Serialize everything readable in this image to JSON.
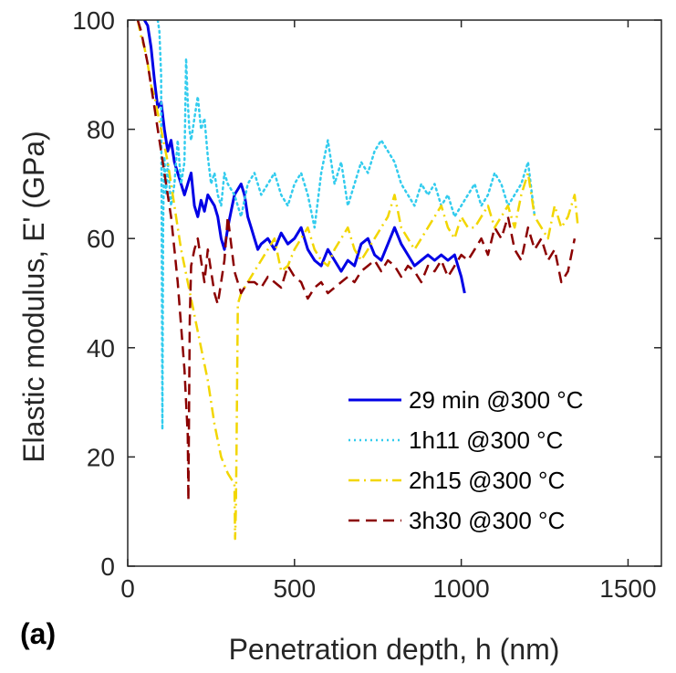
{
  "chart_data": {
    "type": "line",
    "panel_label": "(a)",
    "title": "",
    "xlabel": "Penetration depth, h (nm)",
    "ylabel": "Elastic modulus, E' (GPa)",
    "xlim": [
      0,
      1600
    ],
    "ylim": [
      0,
      100
    ],
    "xticks": [
      "0",
      "500",
      "1000",
      "1500"
    ],
    "yticks": [
      "0",
      "20",
      "40",
      "60",
      "80",
      "100"
    ],
    "legend_position": "bottom-right",
    "series": [
      {
        "name": "29 min @300 °C",
        "color": "#0000e6",
        "style": "solid",
        "x": [
          50,
          60,
          70,
          80,
          90,
          100,
          110,
          120,
          130,
          140,
          150,
          160,
          170,
          180,
          190,
          200,
          210,
          220,
          230,
          240,
          250,
          260,
          270,
          280,
          290,
          300,
          310,
          320,
          330,
          340,
          350,
          360,
          370,
          380,
          390,
          400,
          420,
          440,
          460,
          480,
          500,
          520,
          540,
          560,
          580,
          600,
          620,
          640,
          660,
          680,
          700,
          720,
          740,
          760,
          780,
          800,
          820,
          840,
          860,
          880,
          900,
          920,
          940,
          960,
          980,
          1000,
          1010
        ],
        "y": [
          100,
          99,
          95,
          89,
          84,
          85,
          80,
          76,
          78,
          74,
          72,
          70,
          68,
          70,
          72,
          66,
          64,
          67,
          65,
          68,
          67,
          66,
          64,
          60,
          58,
          62,
          65,
          68,
          69,
          70,
          68,
          64,
          62,
          60,
          58,
          59,
          60,
          58,
          61,
          59,
          60,
          62,
          58,
          56,
          55,
          58,
          56,
          54,
          56,
          55,
          59,
          60,
          57,
          56,
          59,
          62,
          59,
          57,
          55,
          56,
          57,
          56,
          57,
          56,
          57,
          53,
          50
        ]
      },
      {
        "name": "1h11 @300 °C",
        "color": "#33ccee",
        "style": "dotted",
        "x": [
          90,
          95,
          100,
          102,
          104,
          106,
          108,
          110,
          115,
          120,
          130,
          140,
          150,
          160,
          170,
          175,
          180,
          185,
          190,
          200,
          210,
          220,
          230,
          240,
          250,
          260,
          270,
          280,
          290,
          300,
          320,
          340,
          360,
          380,
          400,
          420,
          440,
          460,
          480,
          500,
          520,
          540,
          560,
          580,
          600,
          620,
          640,
          660,
          680,
          700,
          720,
          740,
          760,
          780,
          800,
          820,
          840,
          860,
          880,
          900,
          920,
          940,
          960,
          980,
          1000,
          1020,
          1040,
          1060,
          1080,
          1100,
          1120,
          1140,
          1160,
          1180,
          1200,
          1220
        ],
        "y": [
          100,
          98,
          90,
          60,
          25,
          62,
          70,
          75,
          68,
          74,
          66,
          70,
          78,
          70,
          74,
          93,
          85,
          80,
          78,
          82,
          86,
          80,
          82,
          75,
          70,
          72,
          68,
          66,
          72,
          70,
          68,
          64,
          70,
          72,
          68,
          70,
          72,
          68,
          66,
          70,
          72,
          68,
          62,
          72,
          78,
          70,
          74,
          66,
          70,
          74,
          72,
          76,
          78,
          76,
          74,
          70,
          68,
          66,
          70,
          68,
          70,
          66,
          68,
          64,
          66,
          68,
          70,
          66,
          68,
          72,
          70,
          66,
          68,
          70,
          74,
          64
        ]
      },
      {
        "name": "2h15 @300 °C",
        "color": "#f2d600",
        "style": "dashdot",
        "x": [
          30,
          40,
          50,
          60,
          70,
          80,
          90,
          100,
          110,
          120,
          130,
          140,
          150,
          160,
          170,
          180,
          200,
          220,
          240,
          260,
          280,
          300,
          320,
          322,
          324,
          326,
          330,
          340,
          360,
          380,
          400,
          420,
          440,
          460,
          480,
          500,
          520,
          540,
          560,
          580,
          600,
          620,
          640,
          660,
          680,
          700,
          720,
          740,
          760,
          780,
          800,
          820,
          840,
          860,
          880,
          900,
          920,
          940,
          960,
          980,
          1000,
          1020,
          1040,
          1060,
          1080,
          1100,
          1120,
          1140,
          1160,
          1180,
          1200,
          1220,
          1240,
          1260,
          1280,
          1300,
          1320,
          1340,
          1350
        ],
        "y": [
          100,
          97,
          95,
          92,
          88,
          86,
          83,
          80,
          77,
          74,
          70,
          66,
          62,
          58,
          55,
          52,
          46,
          40,
          34,
          26,
          20,
          17,
          15,
          5,
          10,
          20,
          48,
          50,
          52,
          54,
          56,
          58,
          60,
          54,
          55,
          58,
          60,
          62,
          58,
          56,
          55,
          58,
          60,
          62,
          58,
          56,
          58,
          60,
          62,
          64,
          68,
          62,
          60,
          58,
          60,
          62,
          64,
          66,
          62,
          60,
          64,
          62,
          62,
          64,
          66,
          62,
          64,
          66,
          62,
          68,
          72,
          64,
          62,
          60,
          66,
          62,
          64,
          68,
          62
        ]
      },
      {
        "name": "3h30 @300 °C",
        "color": "#8b0000",
        "style": "dashed",
        "x": [
          30,
          40,
          50,
          60,
          70,
          80,
          90,
          100,
          110,
          120,
          130,
          140,
          150,
          160,
          170,
          175,
          180,
          182,
          184,
          186,
          190,
          200,
          210,
          220,
          230,
          240,
          250,
          260,
          270,
          280,
          290,
          300,
          320,
          340,
          360,
          380,
          400,
          420,
          440,
          460,
          480,
          500,
          520,
          540,
          560,
          580,
          600,
          620,
          640,
          660,
          680,
          700,
          720,
          740,
          760,
          780,
          800,
          820,
          840,
          860,
          880,
          900,
          920,
          940,
          960,
          980,
          1000,
          1020,
          1040,
          1060,
          1080,
          1100,
          1120,
          1140,
          1160,
          1180,
          1200,
          1220,
          1240,
          1260,
          1280,
          1300,
          1320,
          1340
        ],
        "y": [
          100,
          98,
          95,
          92,
          88,
          84,
          80,
          76,
          72,
          68,
          64,
          58,
          52,
          44,
          36,
          30,
          24,
          12,
          30,
          45,
          55,
          58,
          60,
          56,
          52,
          58,
          54,
          50,
          48,
          52,
          56,
          64,
          54,
          50,
          52,
          52,
          51,
          53,
          52,
          51,
          55,
          53,
          52,
          49,
          51,
          52,
          50,
          51,
          52,
          53,
          52,
          54,
          55,
          56,
          54,
          56,
          55,
          53,
          55,
          54,
          52,
          55,
          54,
          56,
          53,
          55,
          57,
          56,
          58,
          60,
          57,
          62,
          60,
          64,
          58,
          56,
          62,
          58,
          60,
          56,
          58,
          52,
          54,
          60
        ]
      }
    ]
  }
}
